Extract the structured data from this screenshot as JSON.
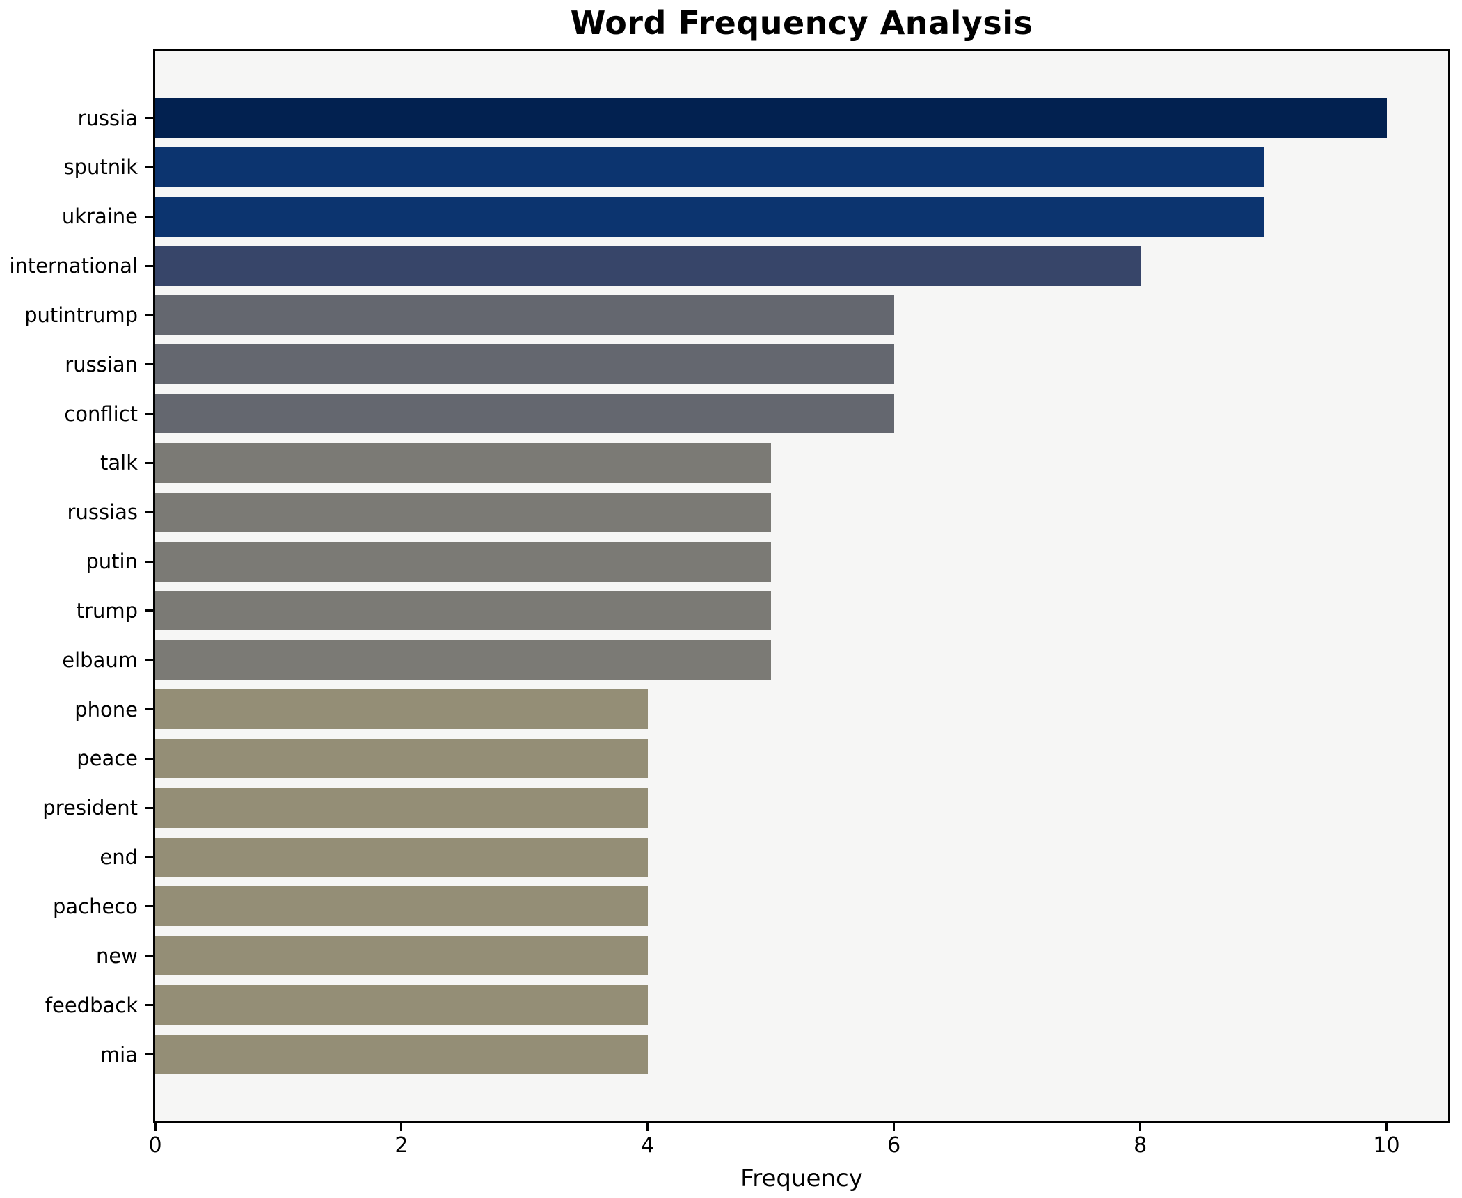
{
  "figure": {
    "background": "#ffffff",
    "plot_background": "#f6f6f5",
    "spine_color": "#000000"
  },
  "chart_data": {
    "type": "bar",
    "orientation": "horizontal",
    "title": "Word Frequency Analysis",
    "xlabel": "Frequency",
    "ylabel": "",
    "grid": false,
    "xlim": [
      0,
      10.5
    ],
    "xticks": [
      0,
      2,
      4,
      6,
      8,
      10
    ],
    "categories": [
      "russia",
      "sputnik",
      "ukraine",
      "international",
      "putintrump",
      "russian",
      "conflict",
      "talk",
      "russias",
      "putin",
      "trump",
      "elbaum",
      "phone",
      "peace",
      "president",
      "end",
      "pacheco",
      "new",
      "feedback",
      "mia"
    ],
    "values": [
      10,
      9,
      9,
      8,
      6,
      6,
      6,
      5,
      5,
      5,
      5,
      5,
      4,
      4,
      4,
      4,
      4,
      4,
      4,
      4
    ],
    "bar_colors": [
      "#022150",
      "#0c346f",
      "#0c346f",
      "#374569",
      "#64676f",
      "#64676f",
      "#64676f",
      "#7b7a75",
      "#7b7a75",
      "#7b7a75",
      "#7b7a75",
      "#7b7a75",
      "#948e76",
      "#948e76",
      "#948e76",
      "#948e76",
      "#948e76",
      "#948e76",
      "#948e76",
      "#948e76"
    ]
  }
}
